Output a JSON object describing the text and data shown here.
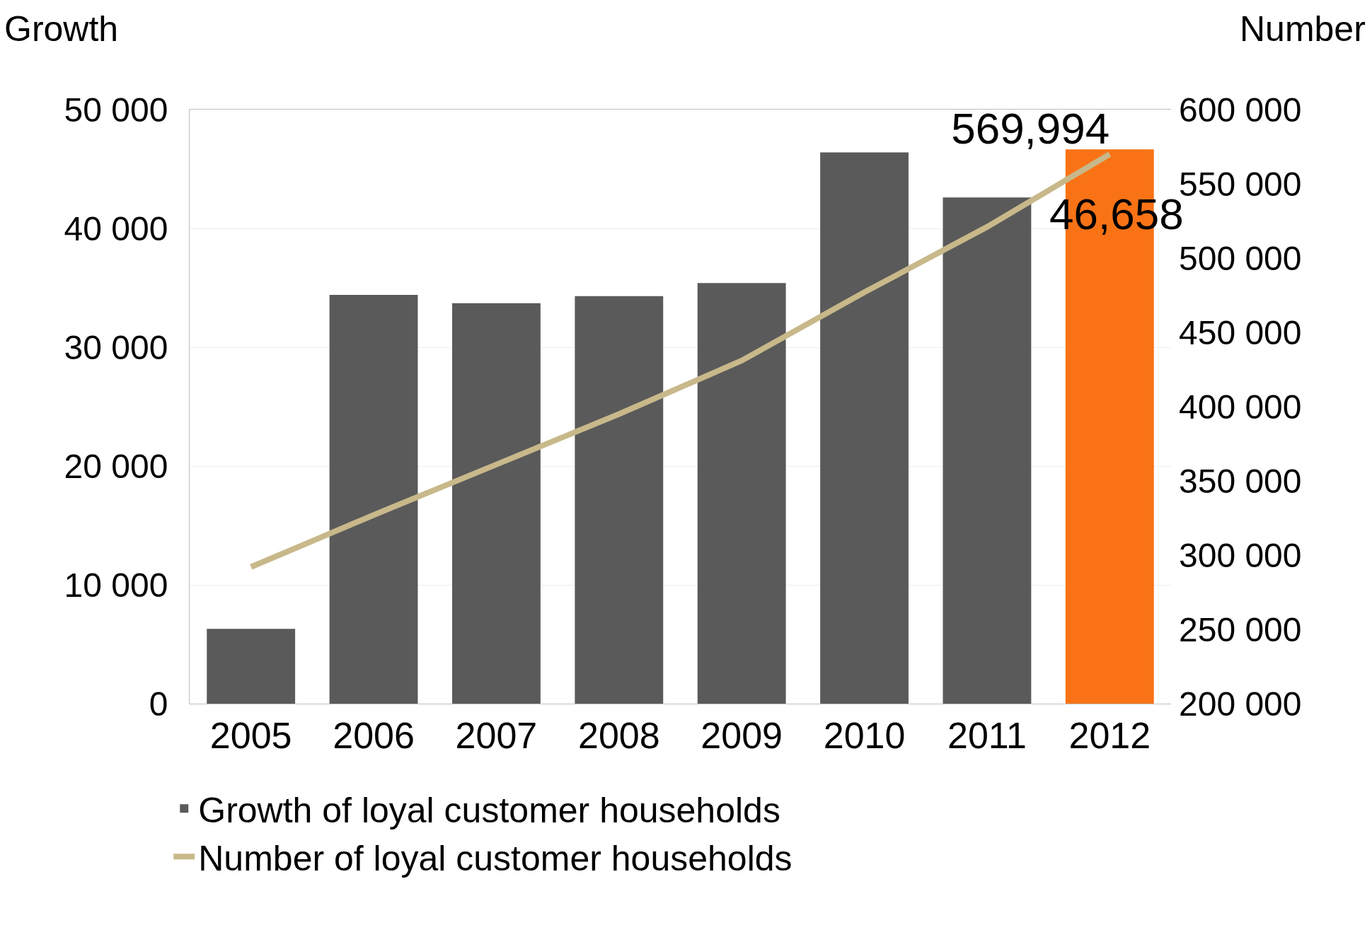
{
  "chart_data": {
    "type": "bar",
    "ylabel": "Growth",
    "y2label": "Number",
    "categories": [
      "2005",
      "2006",
      "2007",
      "2008",
      "2009",
      "2010",
      "2011",
      "2012"
    ],
    "series": [
      {
        "name": "Growth of loyal customer households",
        "colors": [
          "#5a5a5a",
          "#5a5a5a",
          "#5a5a5a",
          "#5a5a5a",
          "#5a5a5a",
          "#5a5a5a",
          "#5a5a5a",
          "#f97316"
        ],
        "values": [
          6300,
          34400,
          33700,
          34300,
          35400,
          46400,
          42600,
          46658
        ],
        "value_labels": [
          null,
          null,
          null,
          null,
          null,
          null,
          null,
          "46,658"
        ]
      },
      {
        "name": "Number of loyal customer households",
        "type": "line",
        "axis": "y2",
        "color": "#c8b88a",
        "values": [
          292000,
          327000,
          361000,
          395000,
          431000,
          477000,
          521000,
          569994
        ],
        "value_labels": [
          null,
          null,
          null,
          null,
          null,
          null,
          null,
          "569,994"
        ]
      }
    ],
    "ylim": [
      0,
      50000
    ],
    "yticks": [
      {
        "value": 0,
        "label": "0"
      },
      {
        "value": 10000,
        "label": "10 000"
      },
      {
        "value": 20000,
        "label": "20 000"
      },
      {
        "value": 30000,
        "label": "30 000"
      },
      {
        "value": 40000,
        "label": "40 000"
      },
      {
        "value": 50000,
        "label": "50 000"
      }
    ],
    "y2lim": [
      200000,
      600000
    ],
    "y2ticks": [
      {
        "value": 200000,
        "label": "200 000"
      },
      {
        "value": 250000,
        "label": "250 000"
      },
      {
        "value": 300000,
        "label": "300 000"
      },
      {
        "value": 350000,
        "label": "350 000"
      },
      {
        "value": 400000,
        "label": "400 000"
      },
      {
        "value": 450000,
        "label": "450 000"
      },
      {
        "value": 500000,
        "label": "500 000"
      },
      {
        "value": 550000,
        "label": "550 000"
      },
      {
        "value": 600000,
        "label": "600 000"
      }
    ],
    "grid": "y",
    "legend": "bottom left",
    "marker": "none",
    "line_style": "solid"
  }
}
